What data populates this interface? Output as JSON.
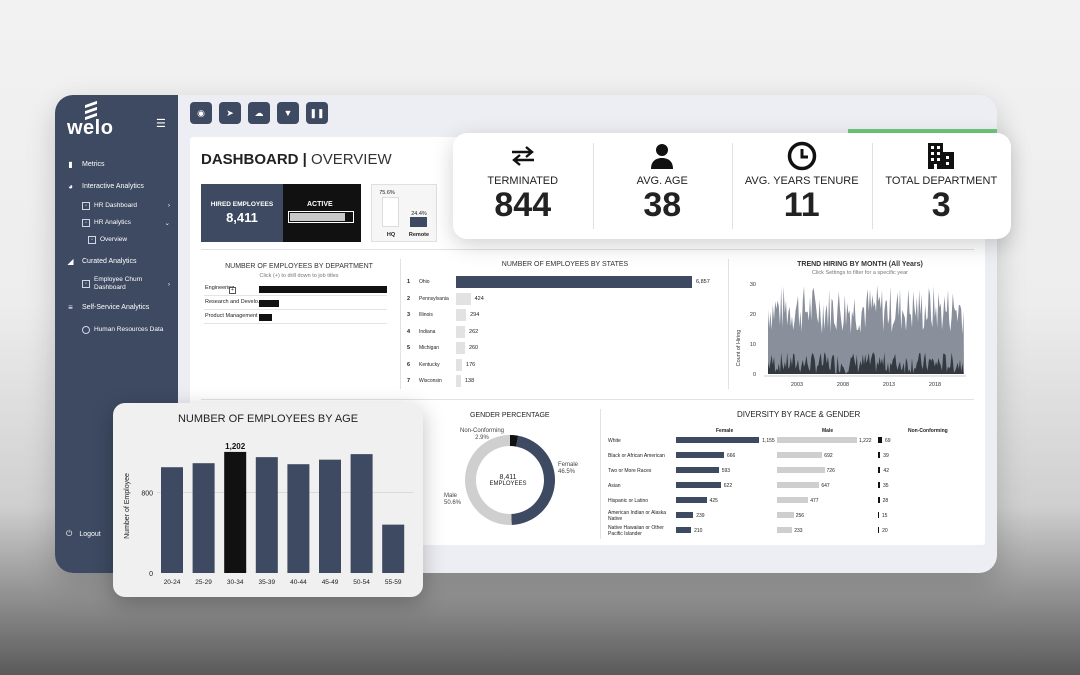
{
  "sidebar": {
    "logo": "welo",
    "items": [
      {
        "label": "Metrics",
        "icon": "bar-chart-icon"
      },
      {
        "label": "Interactive Analytics",
        "icon": "pie-chart-icon"
      },
      {
        "label": "Curated Analytics",
        "icon": "area-chart-icon"
      },
      {
        "label": "Self-Service Analytics",
        "icon": "database-icon"
      }
    ],
    "sub": {
      "hr_dashboard": "HR Dashboard",
      "hr_analytics": "HR Analytics",
      "overview": "Overview",
      "churn": "Employee Churn Dashboard",
      "hr_data": "Human Resources Data"
    },
    "logout": "Logout"
  },
  "dashboard": {
    "title_bold": "DASHBOARD",
    "title_divider": "|",
    "title_rest": "OVERVIEW",
    "hired": {
      "label": "HIRED EMPLOYEES",
      "value": "8,411",
      "active_label": "ACTIVE",
      "active_fraction": 0.86
    },
    "location": {
      "hq_pct": "75.6%",
      "remote_pct": "24.4%",
      "hq_label": "HQ",
      "remote_label": "Remote",
      "hq_value": 75.6,
      "remote_value": 24.4
    }
  },
  "kpis": [
    {
      "label": "TERMINATED",
      "value": "844",
      "icon": "swap-arrows-icon"
    },
    {
      "label": "AVG. AGE",
      "value": "38",
      "icon": "person-icon"
    },
    {
      "label": "AVG. YEARS TENURE",
      "value": "11",
      "icon": "clock-icon"
    },
    {
      "label": "TOTAL DEPARTMENT",
      "value": "3",
      "icon": "building-icon"
    }
  ],
  "department": {
    "title": "NUMBER OF EMPLOYEES BY DEPARTMENT",
    "subtitle": "Click (+) to drill down to job titles",
    "rows": [
      {
        "name": "Engineering",
        "value": 1
      },
      {
        "name": "Research and Develo..",
        "value": 0.16
      },
      {
        "name": "Product Management",
        "value": 0.1
      }
    ]
  },
  "states": {
    "title": "NUMBER OF EMPLOYEES BY STATES",
    "rows": [
      {
        "rank": "1",
        "name": "Ohio",
        "value": 6857,
        "label": "6,857"
      },
      {
        "rank": "2",
        "name": "Pennsylvania",
        "value": 424,
        "label": "424"
      },
      {
        "rank": "3",
        "name": "Illinois",
        "value": 294,
        "label": "294"
      },
      {
        "rank": "4",
        "name": "Indiana",
        "value": 262,
        "label": "262"
      },
      {
        "rank": "5",
        "name": "Michigan",
        "value": 260,
        "label": "260"
      },
      {
        "rank": "6",
        "name": "Kentucky",
        "value": 176,
        "label": "176"
      },
      {
        "rank": "7",
        "name": "Wisconsin",
        "value": 138,
        "label": "138"
      }
    ]
  },
  "trend": {
    "title": "TREND HIRING BY MONTH (All Years)",
    "subtitle": "Click Settings to filter for a specific year",
    "ylabel": "Count of Hiring",
    "yticks": [
      "30",
      "20",
      "10",
      "0"
    ],
    "xticks": [
      "2003",
      "2008",
      "2013",
      "2018"
    ]
  },
  "chart_data": [
    {
      "type": "bar",
      "title": "NUMBER OF EMPLOYEES BY AGE",
      "ylabel": "Number of Employee",
      "categories": [
        "20-24",
        "25-29",
        "30-34",
        "35-39",
        "40-44",
        "45-49",
        "50-54",
        "55-59"
      ],
      "values": [
        1050,
        1090,
        1202,
        1150,
        1080,
        1125,
        1180,
        480
      ],
      "highlight_label": "1,202",
      "yticks": [
        "800",
        "0"
      ],
      "ylim": [
        0,
        1350
      ]
    },
    {
      "type": "pie",
      "title": "GENDER PERCENTAGE",
      "center_value": "8,411",
      "center_label": "EMPLOYEES",
      "slices": [
        {
          "name": "Female",
          "value": 46.5,
          "label": "46.5%"
        },
        {
          "name": "Male",
          "value": 50.6,
          "label": "50.6%"
        },
        {
          "name": "Non-Conforming",
          "value": 2.9,
          "label": "2.9%"
        }
      ]
    },
    {
      "type": "bar",
      "title": "DIVERSITY BY RACE & GENDER",
      "series_names": [
        "Female",
        "Male",
        "Non-Conforming"
      ],
      "categories": [
        "White",
        "Black or African American",
        "Two or More Races",
        "Asian",
        "Hispanic or Latino",
        "American Indian or Alaska Native",
        "Native Hawaiian or Other Pacific Islander"
      ],
      "series": [
        {
          "name": "Female",
          "values": [
            1155,
            666,
            593,
            622,
            425,
            239,
            210
          ]
        },
        {
          "name": "Male",
          "values": [
            1222,
            692,
            726,
            647,
            477,
            256,
            233
          ]
        },
        {
          "name": "Non-Conforming",
          "values": [
            69,
            39,
            42,
            35,
            28,
            15,
            20
          ]
        }
      ],
      "labels": {
        "Female": [
          "1,155",
          "666",
          "593",
          "622",
          "425",
          "239",
          "210"
        ],
        "Male": [
          "1,222",
          "692",
          "726",
          "647",
          "477",
          "256",
          "233"
        ],
        "Non-Conforming": [
          "69",
          "39",
          "42",
          "35",
          "28",
          "15",
          "20"
        ]
      }
    }
  ],
  "colors": {
    "navy": "#3d4a61",
    "black": "#111111",
    "gray": "#c9c9c9",
    "accent_green": "#6dc77a"
  }
}
